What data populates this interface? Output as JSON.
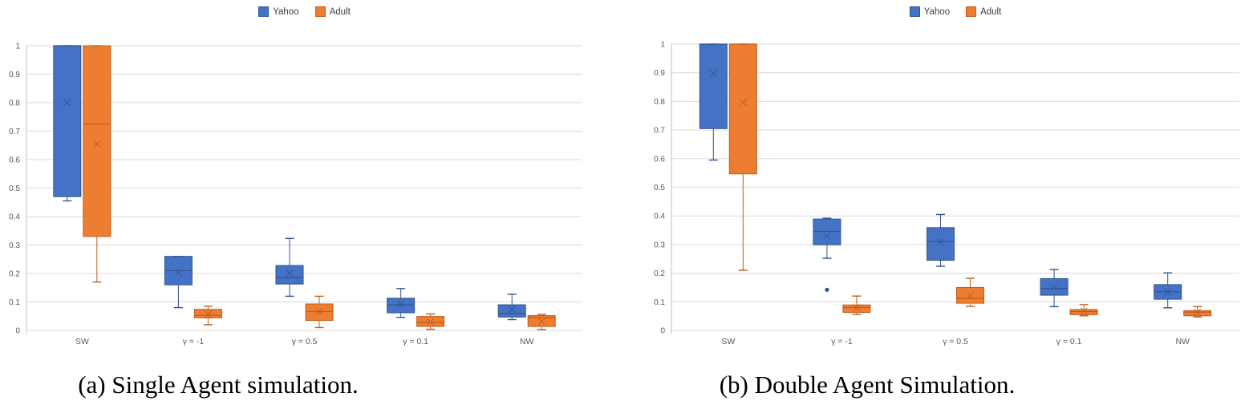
{
  "legend": {
    "yahoo_label": "Yahoo",
    "adult_label": "Adult"
  },
  "colors": {
    "yahoo_fill": "#4472C4",
    "yahoo_border": "#31538F",
    "adult_fill": "#ED7D31",
    "adult_border": "#BE5D1D",
    "gridline": "#D9D9D9",
    "axis_line": "#BFBFBF",
    "tick_text": "#595959"
  },
  "chart_data": [
    {
      "type": "boxplot",
      "title": "(a) Single Agent simulation.",
      "categories": [
        "SW",
        "γ = -1",
        "γ = 0.5",
        "γ = 0.1",
        "NW"
      ],
      "ylim": [
        0,
        1
      ],
      "yticks": [
        0,
        0.1,
        0.2,
        0.3,
        0.4,
        0.5,
        0.6,
        0.7,
        0.8,
        0.9,
        1
      ],
      "grid": true,
      "legend_position": "top-center",
      "series": [
        {
          "name": "Yahoo",
          "fill": "#4472C4",
          "border": "#31538F",
          "boxes": [
            {
              "low": 0.455,
              "q1": 0.47,
              "med": 1.0,
              "q3": 1.0,
              "high": 1.0,
              "mean": 0.8,
              "outliers": []
            },
            {
              "low": 0.08,
              "q1": 0.16,
              "med": 0.21,
              "q3": 0.26,
              "high": 0.26,
              "mean": 0.202,
              "outliers": []
            },
            {
              "low": 0.12,
              "q1": 0.163,
              "med": 0.186,
              "q3": 0.228,
              "high": 0.323,
              "mean": 0.201,
              "outliers": []
            },
            {
              "low": 0.046,
              "q1": 0.062,
              "med": 0.09,
              "q3": 0.113,
              "high": 0.147,
              "mean": 0.092,
              "outliers": []
            },
            {
              "low": 0.038,
              "q1": 0.047,
              "med": 0.059,
              "q3": 0.09,
              "high": 0.127,
              "mean": 0.073,
              "outliers": []
            }
          ]
        },
        {
          "name": "Adult",
          "fill": "#ED7D31",
          "border": "#BE5D1D",
          "boxes": [
            {
              "low": 0.17,
              "q1": 0.33,
              "med": 0.725,
              "q3": 1.0,
              "high": 1.0,
              "mean": 0.655,
              "outliers": []
            },
            {
              "low": 0.02,
              "q1": 0.044,
              "med": 0.053,
              "q3": 0.074,
              "high": 0.085,
              "mean": 0.056,
              "outliers": []
            },
            {
              "low": 0.01,
              "q1": 0.035,
              "med": 0.066,
              "q3": 0.093,
              "high": 0.12,
              "mean": 0.067,
              "outliers": []
            },
            {
              "low": 0.004,
              "q1": 0.014,
              "med": 0.028,
              "q3": 0.049,
              "high": 0.058,
              "mean": 0.03,
              "outliers": []
            },
            {
              "low": 0.003,
              "q1": 0.014,
              "med": 0.045,
              "q3": 0.052,
              "high": 0.056,
              "mean": 0.031,
              "outliers": []
            }
          ]
        }
      ]
    },
    {
      "type": "boxplot",
      "title": "(b) Double Agent Simulation.",
      "categories": [
        "SW",
        "γ = -1",
        "γ = 0.5",
        "γ = 0.1",
        "NW"
      ],
      "ylim": [
        0,
        1
      ],
      "yticks": [
        0,
        0.1,
        0.2,
        0.3,
        0.4,
        0.5,
        0.6,
        0.7,
        0.8,
        0.9,
        1
      ],
      "grid": true,
      "legend_position": "top-center",
      "series": [
        {
          "name": "Yahoo",
          "fill": "#4472C4",
          "border": "#31538F",
          "boxes": [
            {
              "low": 0.595,
              "q1": 0.705,
              "med": 1.0,
              "q3": 1.0,
              "high": 1.0,
              "mean": 0.897,
              "outliers": []
            },
            {
              "low": 0.252,
              "q1": 0.299,
              "med": 0.346,
              "q3": 0.389,
              "high": 0.392,
              "mean": 0.329,
              "outliers": [
                0.142
              ]
            },
            {
              "low": 0.224,
              "q1": 0.245,
              "med": 0.31,
              "q3": 0.359,
              "high": 0.405,
              "mean": 0.309,
              "outliers": []
            },
            {
              "low": 0.083,
              "q1": 0.123,
              "med": 0.146,
              "q3": 0.181,
              "high": 0.213,
              "mean": 0.15,
              "outliers": []
            },
            {
              "low": 0.079,
              "q1": 0.109,
              "med": 0.135,
              "q3": 0.16,
              "high": 0.201,
              "mean": 0.133,
              "outliers": []
            }
          ]
        },
        {
          "name": "Adult",
          "fill": "#ED7D31",
          "border": "#BE5D1D",
          "boxes": [
            {
              "low": 0.21,
              "q1": 0.547,
              "med": 1.0,
              "q3": 1.0,
              "high": 1.0,
              "mean": 0.797,
              "outliers": []
            },
            {
              "low": 0.056,
              "q1": 0.063,
              "med": 0.08,
              "q3": 0.089,
              "high": 0.12,
              "mean": 0.08,
              "outliers": []
            },
            {
              "low": 0.084,
              "q1": 0.095,
              "med": 0.112,
              "q3": 0.15,
              "high": 0.182,
              "mean": 0.122,
              "outliers": []
            },
            {
              "low": 0.051,
              "q1": 0.055,
              "med": 0.066,
              "q3": 0.073,
              "high": 0.09,
              "mean": 0.068,
              "outliers": []
            },
            {
              "low": 0.047,
              "q1": 0.051,
              "med": 0.064,
              "q3": 0.069,
              "high": 0.083,
              "mean": 0.064,
              "outliers": []
            }
          ]
        }
      ]
    }
  ]
}
